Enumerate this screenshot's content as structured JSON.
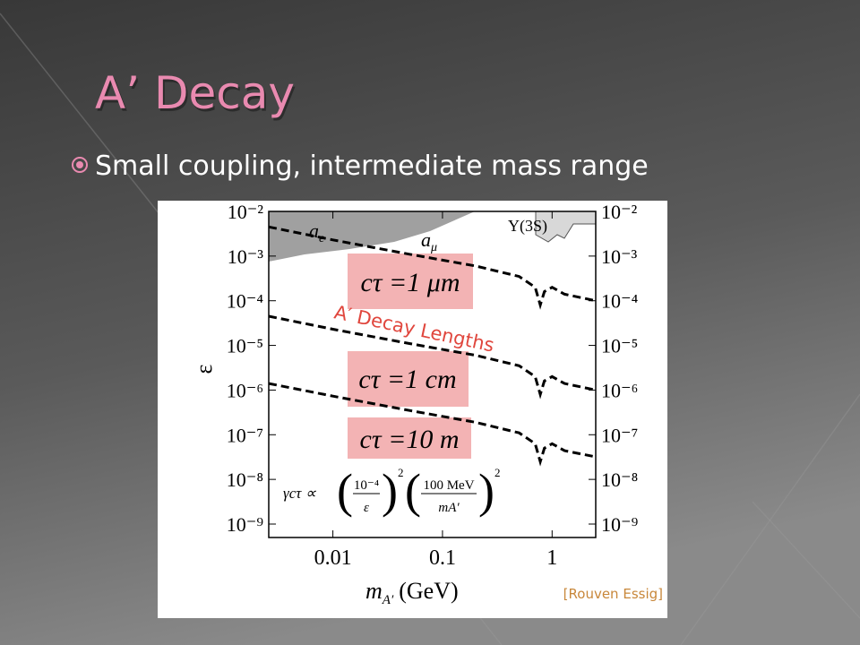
{
  "slide": {
    "title": "A’ Decay",
    "bullets": [
      "Small coupling, intermediate mass range"
    ]
  },
  "figure": {
    "type": "line",
    "log_x": true,
    "log_y": true,
    "x_label": {
      "symbol": "m",
      "subscript": "A′",
      "unit": "(GeV)"
    },
    "y_label": "ε",
    "xlim": [
      0.0026,
      2.5
    ],
    "ylim": [
      5e-10,
      0.01
    ],
    "xticks": [
      0.01,
      0.1,
      1
    ],
    "yticks": [
      {
        "value": 0.01,
        "label": "10⁻²"
      },
      {
        "value": 0.001,
        "label": "10⁻³"
      },
      {
        "value": 0.0001,
        "label": "10⁻⁴"
      },
      {
        "value": 1e-05,
        "label": "10⁻⁵"
      },
      {
        "value": 1e-06,
        "label": "10⁻⁶"
      },
      {
        "value": 1e-07,
        "label": "10⁻⁷"
      },
      {
        "value": 1e-08,
        "label": "10⁻⁸"
      },
      {
        "value": 1e-09,
        "label": "10⁻⁹"
      }
    ],
    "x": [
      0.0026,
      0.01,
      0.05,
      0.2,
      0.5,
      0.7,
      0.78,
      0.85,
      1.0,
      1.3,
      2.5
    ],
    "series": [
      {
        "name": "cτ =1 μm",
        "color": "#000000",
        "values": [
          0.0045,
          0.0023,
          0.0011,
          0.0006,
          0.00035,
          0.0002,
          8e-05,
          0.00016,
          0.0002,
          0.00014,
          0.0001
        ]
      },
      {
        "name": "cτ =1 cm",
        "color": "#000000",
        "values": [
          4.5e-05,
          2.3e-05,
          1.1e-05,
          6e-06,
          3.5e-06,
          2e-06,
          8e-07,
          1.6e-06,
          2e-06,
          1.4e-06,
          1e-06
        ]
      },
      {
        "name": "cτ =10 m",
        "color": "#000000",
        "values": [
          1.4e-06,
          7.3e-07,
          3.5e-07,
          1.9e-07,
          1.1e-07,
          6.3e-08,
          2.5e-08,
          5e-08,
          6.3e-08,
          4.4e-08,
          3.2e-08
        ]
      }
    ],
    "annotations": {
      "decay_lengths": "A′ Decay Lengths",
      "a_e": "a",
      "a_e_sub": "e",
      "a_mu": "a",
      "a_mu_sub": "μ",
      "upsilon": "Υ(3S)",
      "credit": "[Rouven Essig]"
    },
    "formula": {
      "lhs": "γcτ ∝",
      "num1": "10⁻⁴",
      "den1": "ε",
      "exp1": "2",
      "num2": "100 MeV",
      "den2": "mA′",
      "exp2": "2"
    }
  }
}
